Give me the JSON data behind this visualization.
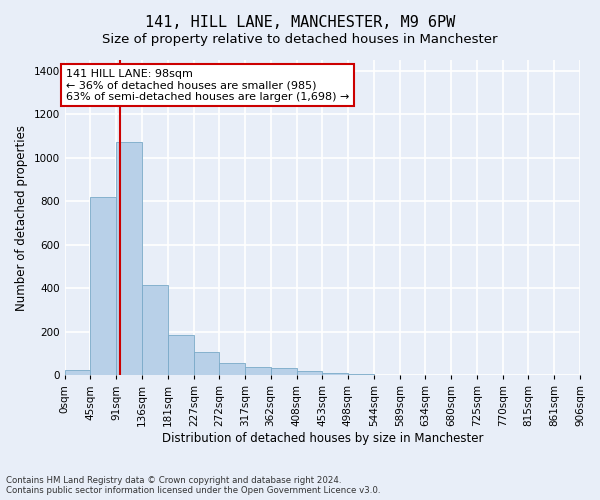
{
  "title": "141, HILL LANE, MANCHESTER, M9 6PW",
  "subtitle": "Size of property relative to detached houses in Manchester",
  "xlabel": "Distribution of detached houses by size in Manchester",
  "ylabel": "Number of detached properties",
  "footnote1": "Contains HM Land Registry data © Crown copyright and database right 2024.",
  "footnote2": "Contains public sector information licensed under the Open Government Licence v3.0.",
  "bin_labels": [
    "0sqm",
    "45sqm",
    "91sqm",
    "136sqm",
    "181sqm",
    "227sqm",
    "272sqm",
    "317sqm",
    "362sqm",
    "408sqm",
    "453sqm",
    "498sqm",
    "544sqm",
    "589sqm",
    "634sqm",
    "680sqm",
    "725sqm",
    "770sqm",
    "815sqm",
    "861sqm",
    "906sqm"
  ],
  "bin_edges": [
    0,
    45,
    91,
    136,
    181,
    227,
    272,
    317,
    362,
    408,
    453,
    498,
    544,
    589,
    634,
    680,
    725,
    770,
    815,
    861,
    906
  ],
  "bar_heights": [
    25,
    820,
    1075,
    415,
    185,
    107,
    57,
    37,
    32,
    20,
    10,
    8,
    0,
    0,
    0,
    0,
    0,
    0,
    0,
    0
  ],
  "bar_color": "#b8d0e8",
  "bar_edge_color": "#7aaac8",
  "property_size": 98,
  "property_label": "141 HILL LANE: 98sqm",
  "annotation_line1": "← 36% of detached houses are smaller (985)",
  "annotation_line2": "63% of semi-detached houses are larger (1,698) →",
  "vline_color": "#cc0000",
  "annotation_box_edge_color": "#cc0000",
  "ylim": [
    0,
    1450
  ],
  "yticks": [
    0,
    200,
    400,
    600,
    800,
    1000,
    1200,
    1400
  ],
  "bg_color": "#e8eef8",
  "plot_bg_color": "#e8eef8",
  "grid_color": "#ffffff",
  "title_fontsize": 11,
  "subtitle_fontsize": 9.5,
  "axis_label_fontsize": 8.5,
  "tick_fontsize": 7.5,
  "annotation_fontsize": 8
}
